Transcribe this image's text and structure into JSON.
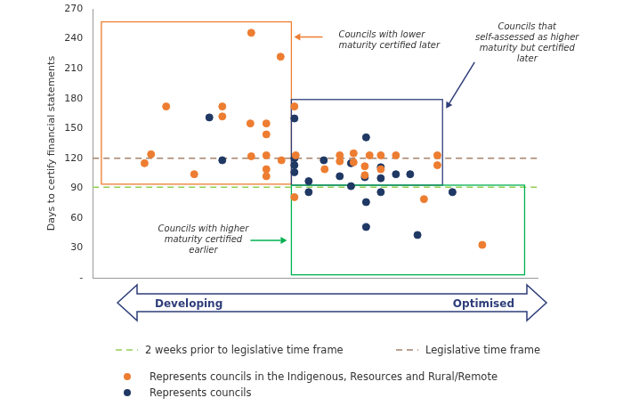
{
  "chart_data": {
    "type": "scatter",
    "ylabel": "Days to certify financial statements",
    "xlim": [
      0,
      103
    ],
    "ylim": [
      0,
      270
    ],
    "yticks": [
      {
        "value": 0,
        "label": "-"
      },
      30,
      60,
      90,
      120,
      150,
      180,
      210,
      240,
      270
    ],
    "grid": false,
    "tick_labels": "y",
    "x_axis_arrow": {
      "start": "Developing",
      "end": "Optimised"
    },
    "series": [
      {
        "name": "Represents councils in the Indigenous, Resources and Rural/Remote",
        "color": "#ed7d31",
        "marker": "circle",
        "x": [
          12,
          13.5,
          17,
          23.5,
          36.7,
          30,
          30,
          36.5,
          36.7,
          40.2,
          40.2,
          40.2,
          40.2,
          40.2,
          43.5,
          43.7,
          46.7,
          47,
          46.7,
          53.7,
          57.2,
          57.2,
          60.4,
          60.4,
          63,
          63,
          64.1,
          66.7,
          66.7,
          70.2,
          76.7,
          79.8,
          79.8,
          90.2
        ],
        "values": [
          115,
          124,
          172,
          104,
          246,
          172,
          162,
          155,
          122,
          155,
          144,
          123,
          109,
          102,
          222,
          118,
          172,
          123,
          81,
          109,
          123,
          117,
          125,
          116,
          112,
          103,
          123,
          123,
          109,
          123,
          79,
          123,
          113,
          33
        ]
      },
      {
        "name": "Represents councils",
        "color": "#1f3864",
        "marker": "circle",
        "x": [
          27,
          30,
          46.7,
          46.7,
          46.7,
          50,
          50,
          53.5,
          57.2,
          59.8,
          59.8,
          63,
          63.3,
          63.3,
          63.3,
          66.7,
          66.7,
          66.7,
          70.2,
          73.5,
          75.2,
          83.3,
          46.7
        ],
        "values": [
          161,
          118,
          160,
          113,
          106,
          97,
          86,
          118,
          102,
          115,
          92,
          101,
          141,
          76,
          51,
          111,
          100,
          86,
          104,
          104,
          43,
          86,
          120
        ]
      }
    ],
    "reference_lines": [
      {
        "value": 91,
        "label": "2 weeks prior to legislative time frame",
        "color": "#92d050",
        "line_style": "dashed"
      },
      {
        "value": 120,
        "label": "Legislative time frame",
        "color": "#a5826b",
        "line_style": "dashed"
      }
    ],
    "regions": [
      {
        "label": "Councils with lower maturity certified later",
        "xlim": [
          2,
          46
        ],
        "ylim": [
          94,
          257
        ],
        "color": "#ed7d31"
      },
      {
        "label": "Councils that self-assessed as higher maturity but certified later",
        "xlim": [
          46,
          81
        ],
        "ylim": [
          93,
          179
        ],
        "color": "#2f3e7a"
      },
      {
        "label": "Councils with higher maturity certified earlier",
        "xlim": [
          46,
          100
        ],
        "ylim": [
          3,
          93
        ],
        "color": "#00b050"
      }
    ]
  }
}
